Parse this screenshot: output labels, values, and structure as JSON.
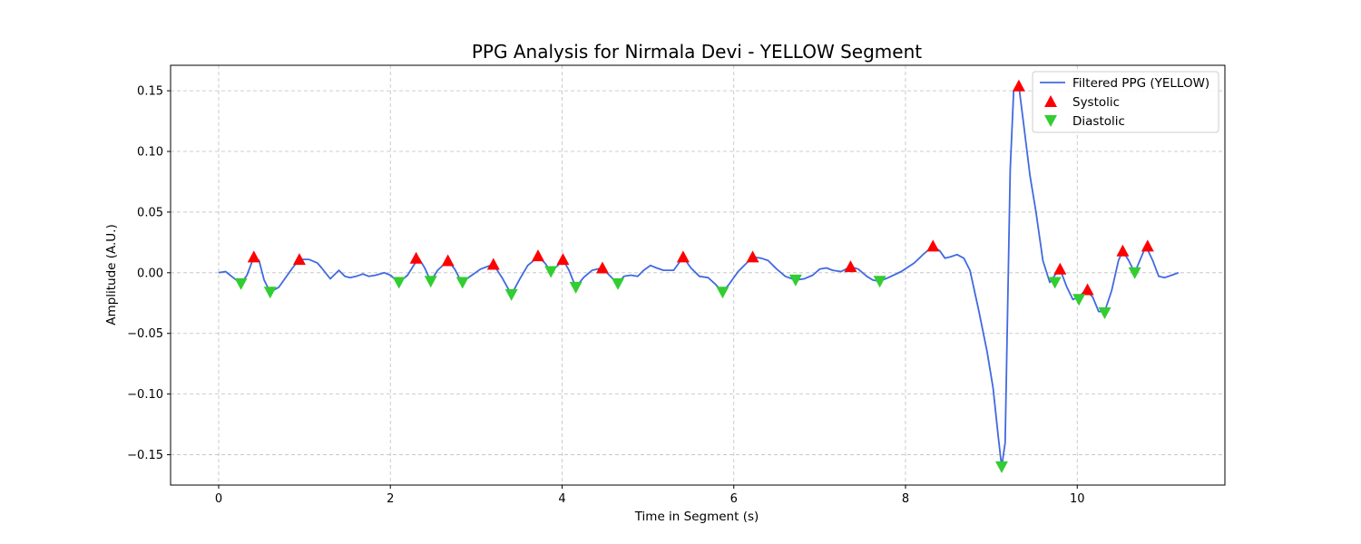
{
  "chart_data": {
    "type": "line",
    "title": "PPG Analysis for Nirmala Devi - YELLOW Segment",
    "xlabel": "Time in Segment (s)",
    "ylabel": "Amplitude (A.U.)",
    "xlim": [
      -0.56,
      11.72
    ],
    "ylim": [
      -0.175,
      0.171
    ],
    "xticks": [
      0,
      2,
      4,
      6,
      8,
      10
    ],
    "yticks": [
      -0.15,
      -0.1,
      -0.05,
      0.0,
      0.05,
      0.1,
      0.15
    ],
    "xtick_labels": [
      "0",
      "2",
      "4",
      "6",
      "8",
      "10"
    ],
    "ytick_labels": [
      "−0.15",
      "−0.10",
      "−0.05",
      "0.00",
      "0.05",
      "0.10",
      "0.15"
    ],
    "grid": true,
    "legend_position": "top-right",
    "series": [
      {
        "name": "Filtered PPG (YELLOW)",
        "color": "#4169e1",
        "style": "line",
        "x": [
          0,
          0.08,
          0.15,
          0.26,
          0.33,
          0.41,
          0.47,
          0.53,
          0.6,
          0.7,
          0.8,
          0.86,
          0.94,
          1.05,
          1.15,
          1.2,
          1.3,
          1.4,
          1.47,
          1.53,
          1.6,
          1.68,
          1.75,
          1.83,
          1.93,
          2.0,
          2.1,
          2.2,
          2.28,
          2.33,
          2.4,
          2.47,
          2.55,
          2.67,
          2.75,
          2.83,
          2.95,
          3.05,
          3.2,
          3.3,
          3.41,
          3.5,
          3.6,
          3.72,
          3.8,
          3.87,
          3.95,
          4.01,
          4.08,
          4.16,
          4.25,
          4.35,
          4.47,
          4.55,
          4.65,
          4.72,
          4.8,
          4.88,
          4.95,
          5.03,
          5.1,
          5.18,
          5.3,
          5.41,
          5.5,
          5.6,
          5.7,
          5.78,
          5.87,
          5.95,
          6.05,
          6.15,
          6.22,
          6.32,
          6.4,
          6.5,
          6.6,
          6.72,
          6.82,
          6.92,
          7.0,
          7.08,
          7.15,
          7.25,
          7.36,
          7.45,
          7.55,
          7.62,
          7.7,
          7.8,
          7.95,
          8.1,
          8.22,
          8.32,
          8.4,
          8.46,
          8.52,
          8.6,
          8.68,
          8.75,
          8.85,
          8.95,
          9.02,
          9.08,
          9.12,
          9.16,
          9.22,
          9.26,
          9.32,
          9.38,
          9.45,
          9.52,
          9.6,
          9.68,
          9.74,
          9.8,
          9.88,
          9.95,
          10.02,
          10.1,
          10.18,
          10.25,
          10.32,
          10.4,
          10.48,
          10.53,
          10.6,
          10.67,
          10.74,
          10.8,
          10.88,
          10.95,
          11.02,
          11.1,
          11.18
        ],
        "y": [
          0.0,
          0.001,
          -0.003,
          -0.009,
          -0.002,
          0.013,
          0.01,
          -0.006,
          -0.016,
          -0.012,
          -0.002,
          0.004,
          0.011,
          0.011,
          0.008,
          0.004,
          -0.005,
          0.002,
          -0.003,
          -0.004,
          -0.003,
          -0.001,
          -0.003,
          -0.002,
          0.0,
          -0.002,
          -0.008,
          -0.002,
          0.007,
          0.012,
          0.004,
          -0.007,
          0.002,
          0.01,
          0.003,
          -0.008,
          -0.002,
          0.003,
          0.007,
          -0.004,
          -0.018,
          -0.006,
          0.006,
          0.013,
          0.008,
          0.001,
          0.006,
          0.011,
          0.002,
          -0.012,
          -0.004,
          0.002,
          0.004,
          -0.002,
          -0.009,
          -0.003,
          -0.002,
          -0.003,
          0.002,
          0.006,
          0.004,
          0.002,
          0.002,
          0.013,
          0.004,
          -0.003,
          -0.004,
          -0.009,
          -0.016,
          -0.009,
          0.001,
          0.008,
          0.013,
          0.012,
          0.01,
          0.003,
          -0.003,
          -0.006,
          -0.005,
          -0.002,
          0.003,
          0.004,
          0.002,
          0.001,
          0.005,
          0.003,
          -0.003,
          -0.006,
          -0.007,
          -0.004,
          0.001,
          0.008,
          0.016,
          0.022,
          0.018,
          0.012,
          0.013,
          0.015,
          0.012,
          0.002,
          -0.03,
          -0.065,
          -0.095,
          -0.135,
          -0.16,
          -0.14,
          0.085,
          0.15,
          0.154,
          0.12,
          0.08,
          0.05,
          0.01,
          -0.008,
          -0.002,
          0.003,
          -0.012,
          -0.022,
          -0.02,
          -0.014,
          -0.02,
          -0.032,
          -0.032,
          -0.015,
          0.01,
          0.018,
          0.01,
          0.0,
          0.012,
          0.022,
          0.01,
          -0.003,
          -0.004,
          -0.002,
          0.0
        ]
      },
      {
        "name": "Systolic",
        "color": "#ff0000",
        "style": "marker-up",
        "x": [
          0.41,
          0.94,
          2.3,
          2.67,
          3.2,
          3.72,
          4.01,
          4.47,
          5.41,
          6.22,
          7.36,
          8.32,
          9.32,
          9.8,
          10.12,
          10.53,
          10.82
        ],
        "y": [
          0.013,
          0.011,
          0.012,
          0.01,
          0.007,
          0.014,
          0.011,
          0.004,
          0.013,
          0.013,
          0.005,
          0.022,
          0.154,
          0.003,
          -0.014,
          0.018,
          0.022
        ]
      },
      {
        "name": "Diastolic",
        "color": "#32cd32",
        "style": "marker-down",
        "x": [
          0.26,
          0.6,
          2.1,
          2.47,
          2.84,
          3.41,
          3.87,
          4.16,
          4.65,
          5.87,
          6.72,
          7.7,
          9.12,
          9.74,
          10.02,
          10.32,
          10.67
        ],
        "y": [
          -0.009,
          -0.016,
          -0.008,
          -0.007,
          -0.008,
          -0.018,
          0.001,
          -0.012,
          -0.009,
          -0.016,
          -0.006,
          -0.007,
          -0.16,
          -0.008,
          -0.022,
          -0.033,
          0.0
        ]
      }
    ]
  }
}
